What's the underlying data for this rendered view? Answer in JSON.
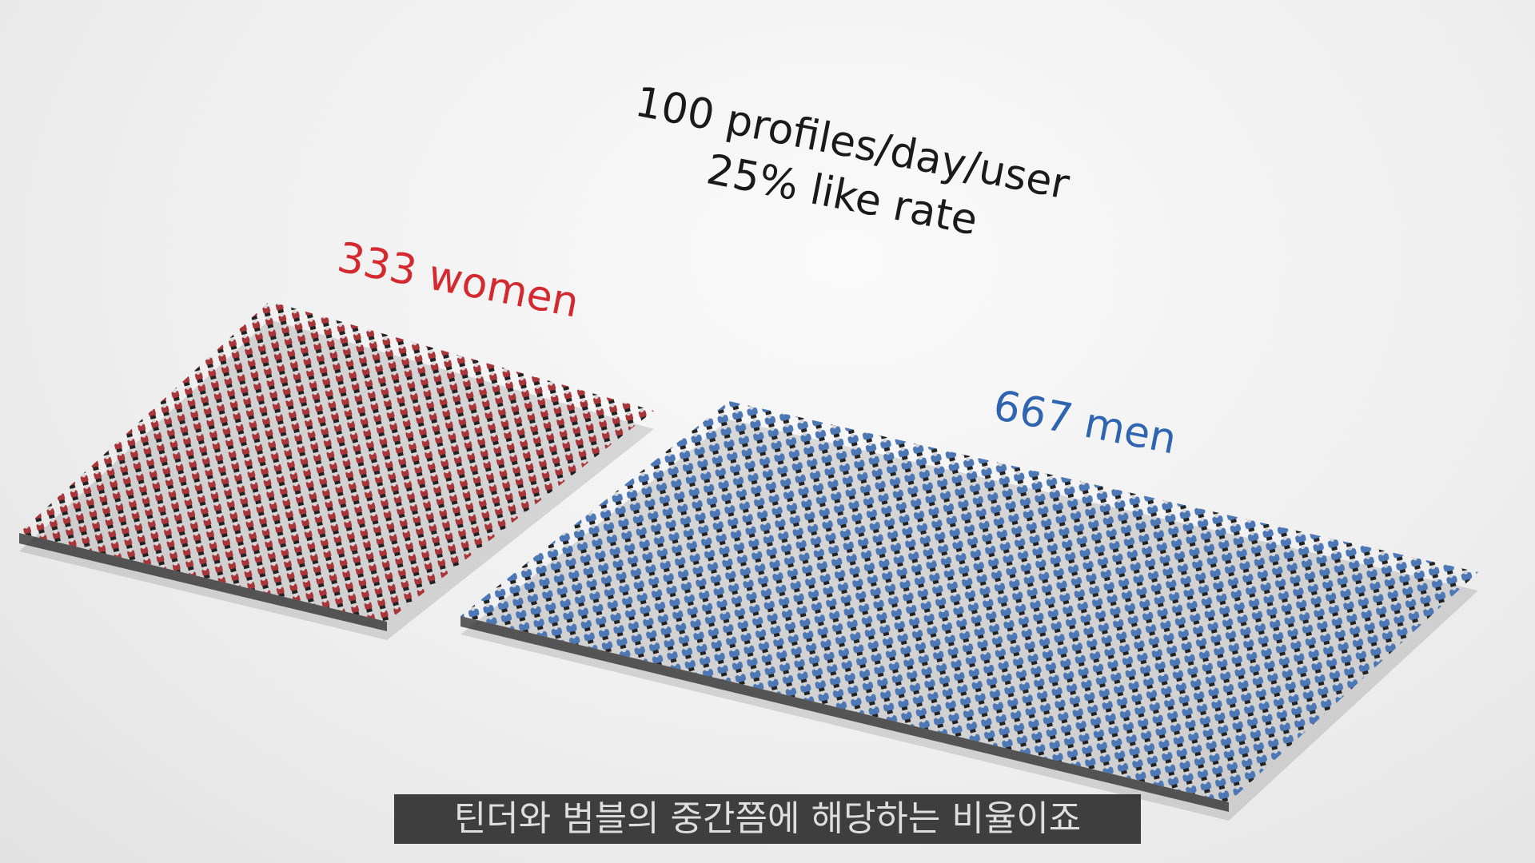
{
  "stats": [
    "100 profiles/day/user",
    "25% like rate"
  ],
  "groups": {
    "women": "333 women",
    "men": "667 men"
  },
  "subtitle": "틴더와 범블의 중간쯤에 해당하는 비율이죠"
}
